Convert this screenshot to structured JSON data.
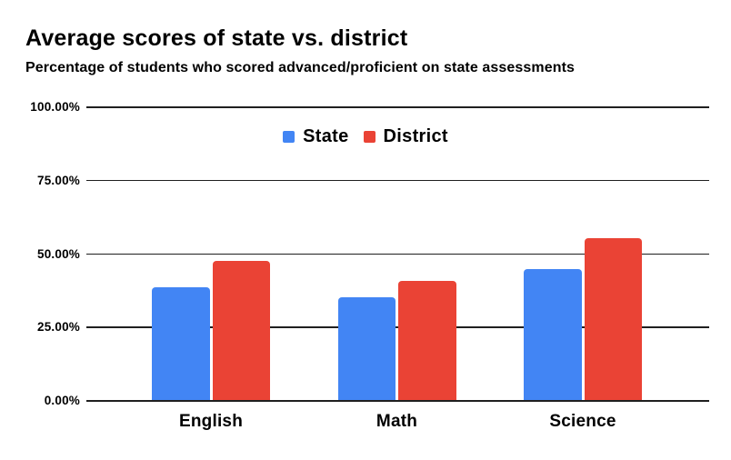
{
  "chart_data": {
    "type": "bar",
    "title": "Average scores of state vs. district",
    "subtitle": "Percentage of students who scored advanced/proficient on state assessments",
    "categories": [
      "English",
      "Math",
      "Science"
    ],
    "series": [
      {
        "name": "State",
        "color": "#4285F4",
        "values": [
          38.5,
          35,
          44.5
        ]
      },
      {
        "name": "District",
        "color": "#EA4335",
        "values": [
          47.5,
          40.5,
          55
        ]
      }
    ],
    "y_ticks": [
      "100.00%",
      "75.00%",
      "50.00%",
      "25.00%",
      "0.00%"
    ],
    "ylim": [
      0,
      100
    ],
    "xlabel": "",
    "ylabel": "",
    "grid": true,
    "legend_position": "top-center",
    "text_color": "#000000",
    "gridline_color": "#1f1f1f",
    "background_color": "#ffffff"
  }
}
